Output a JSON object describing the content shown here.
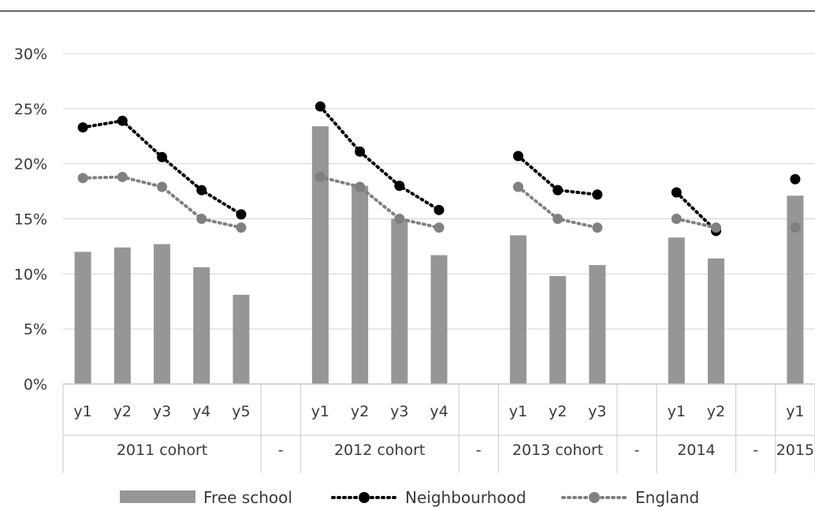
{
  "chart_data": {
    "type": "bar",
    "categories": [
      "y1",
      "y2",
      "y3",
      "y4",
      "y5",
      "",
      "y1",
      "y2",
      "y3",
      "y4",
      "",
      "y1",
      "y2",
      "y3",
      "",
      "y1",
      "y2",
      "",
      "y1"
    ],
    "groups": [
      {
        "label": "2011 cohort",
        "span": 5
      },
      {
        "label": "-",
        "span": 1
      },
      {
        "label": "2012 cohort",
        "span": 4
      },
      {
        "label": "-",
        "span": 1
      },
      {
        "label": "2013 cohort",
        "span": 3
      },
      {
        "label": "-",
        "span": 1
      },
      {
        "label": "2014",
        "span": 2
      },
      {
        "label": "-",
        "span": 1
      },
      {
        "label": "2015",
        "span": 1
      }
    ],
    "series": [
      {
        "name": "Free school",
        "kind": "bar",
        "color": "#969696",
        "values": [
          12.0,
          12.4,
          12.7,
          10.6,
          8.1,
          null,
          23.4,
          18.0,
          15.0,
          11.7,
          null,
          13.5,
          9.8,
          10.8,
          null,
          13.3,
          11.4,
          null,
          17.1
        ]
      },
      {
        "name": "Neighbourhood",
        "kind": "line",
        "color": "#000000",
        "line": "dotted",
        "values": [
          23.3,
          23.9,
          20.6,
          17.6,
          15.4,
          null,
          25.2,
          21.1,
          18.0,
          15.8,
          null,
          20.7,
          17.6,
          17.2,
          null,
          17.4,
          13.9,
          null,
          18.6
        ]
      },
      {
        "name": "England",
        "kind": "line",
        "color": "#808080",
        "line": "dotted",
        "values": [
          18.7,
          18.8,
          17.9,
          15.0,
          14.2,
          null,
          18.8,
          17.9,
          15.0,
          14.2,
          null,
          17.9,
          15.0,
          14.2,
          null,
          15.0,
          14.2,
          null,
          14.2
        ]
      }
    ],
    "yticks": [
      "0%",
      "5%",
      "10%",
      "15%",
      "20%",
      "25%",
      "30%"
    ],
    "ylim": [
      0,
      30
    ],
    "grid": true,
    "legend_position": "bottom"
  }
}
